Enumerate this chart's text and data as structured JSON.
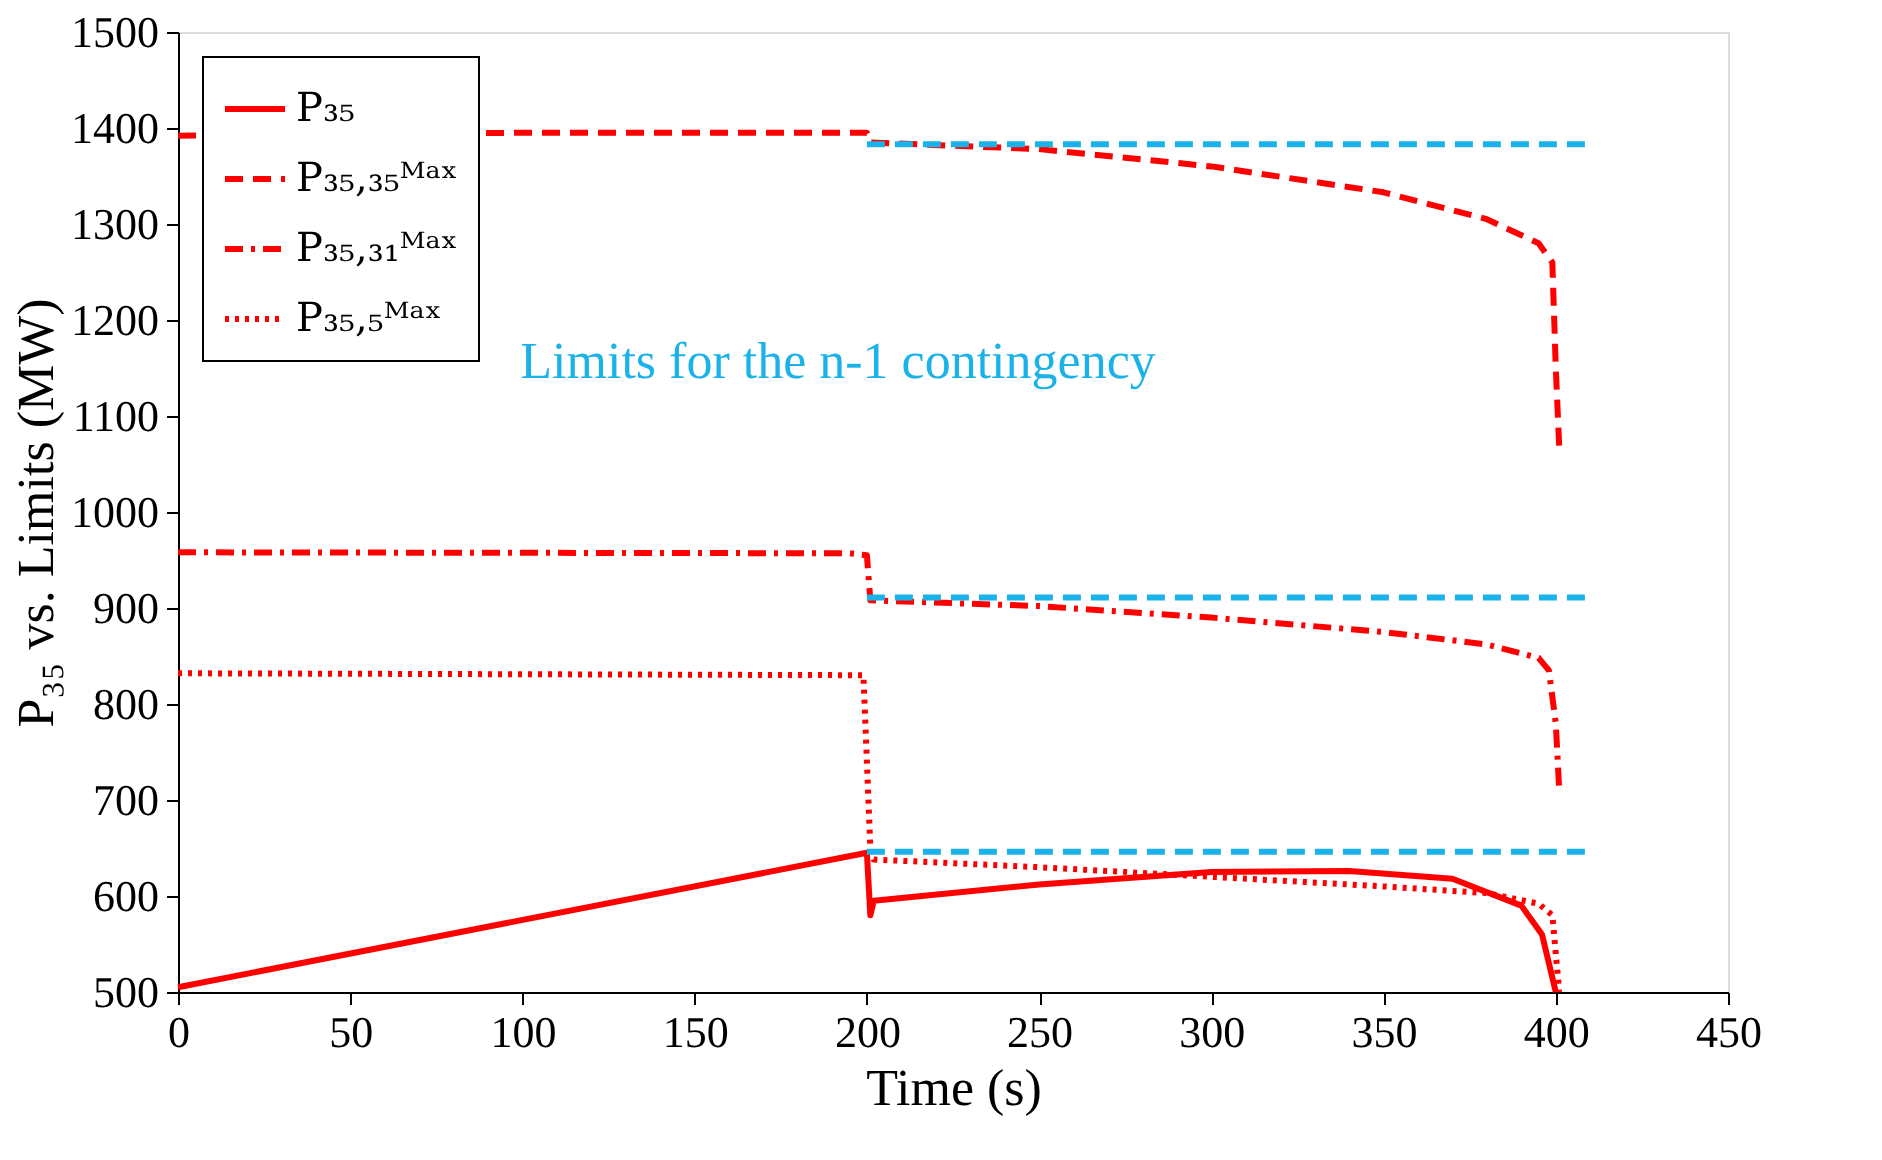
{
  "chart_data": {
    "type": "line",
    "xlabel": "Time (s)",
    "ylabel": "P₃₅ vs. Limits (MW)",
    "xlim": [
      0,
      450
    ],
    "xticks": [
      0,
      50,
      100,
      150,
      200,
      250,
      300,
      350,
      400,
      450
    ],
    "ylim": [
      500,
      1500
    ],
    "yticks": [
      500,
      600,
      700,
      800,
      900,
      1000,
      1100,
      1200,
      1300,
      1400,
      1500
    ],
    "grid": false,
    "legend": "top left",
    "marker": "none",
    "annotations": [
      "Limits for the n-1 contingency"
    ],
    "series": [
      {
        "name": "P₃₅",
        "color": "#ff0000",
        "line_style": "solid",
        "x": [
          0,
          200,
          201,
          202,
          250,
          300,
          340,
          370,
          390,
          396,
          400
        ],
        "values": [
          505,
          645,
          580,
          595,
          612,
          625,
          626,
          618,
          590,
          560,
          500
        ]
      },
      {
        "name": "P₃₅,₃₅ᴹᵃˣ",
        "color": "#ff0000",
        "line_style": "dashed",
        "x": [
          0,
          100,
          200,
          201,
          250,
          300,
          350,
          380,
          395,
          399,
          400,
          401
        ],
        "values": [
          1392,
          1395,
          1395,
          1385,
          1378,
          1360,
          1333,
          1305,
          1280,
          1260,
          1150,
          1068
        ]
      },
      {
        "name": "P₃₅,₃₁ᴹᵃˣ",
        "color": "#ff0000",
        "line_style": "dashdot",
        "x": [
          0,
          195,
          200,
          201,
          250,
          300,
          350,
          380,
          395,
          398,
          400,
          401
        ],
        "values": [
          958,
          957,
          955,
          908,
          902,
          890,
          875,
          862,
          848,
          835,
          780,
          710
        ]
      },
      {
        "name": "P₃₅,₅ᴹᵃˣ",
        "color": "#ff0000",
        "line_style": "dotted",
        "x": [
          0,
          199,
          201,
          202,
          250,
          300,
          350,
          380,
          395,
          399,
          401
        ],
        "values": [
          832,
          830,
          650,
          638,
          630,
          620,
          610,
          603,
          592,
          580,
          500
        ]
      },
      {
        "color": "#1ab2e8",
        "line_style": "dashed",
        "x": [
          200,
          410
        ],
        "values": [
          1383,
          1383
        ]
      },
      {
        "color": "#1ab2e8",
        "line_style": "dashed",
        "x": [
          200,
          410
        ],
        "values": [
          911,
          911
        ]
      },
      {
        "color": "#1ab2e8",
        "line_style": "dashed",
        "x": [
          200,
          410
        ],
        "values": [
          646,
          646
        ]
      }
    ]
  }
}
